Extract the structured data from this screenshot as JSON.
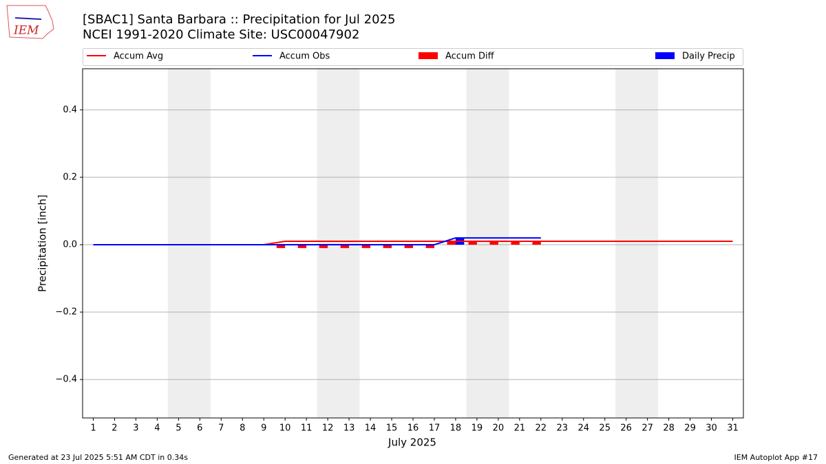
{
  "chart_data": {
    "type": "line",
    "title": "[SBAC1] Santa Barbara :: Precipitation for Jul 2025",
    "subtitle": "NCEI 1991-2020 Climate Site: USC00047902",
    "logo_text": "IEM",
    "xlabel": "July 2025",
    "ylabel": "Precipitation [inch]",
    "footer_left": "Generated at 23 Jul 2025 5:51 AM CDT in 0.34s",
    "footer_right": "IEM Autoplot App #17",
    "x": [
      1,
      2,
      3,
      4,
      5,
      6,
      7,
      8,
      9,
      10,
      11,
      12,
      13,
      14,
      15,
      16,
      17,
      18,
      19,
      20,
      21,
      22,
      23,
      24,
      25,
      26,
      27,
      28,
      29,
      30,
      31
    ],
    "series": [
      {
        "name": "Accum Avg",
        "type": "line",
        "color": "#ff0000",
        "values": [
          0,
          0,
          0,
          0,
          0,
          0,
          0,
          0,
          0,
          0.01,
          0.01,
          0.01,
          0.01,
          0.01,
          0.01,
          0.01,
          0.01,
          0.01,
          0.01,
          0.01,
          0.01,
          0.01,
          0.01,
          0.01,
          0.01,
          0.01,
          0.01,
          0.01,
          0.01,
          0.01,
          0.01
        ]
      },
      {
        "name": "Accum Obs",
        "type": "line",
        "color": "#0000ff",
        "values": [
          0,
          0,
          0,
          0,
          0,
          0,
          0,
          0,
          0,
          0,
          0,
          0,
          0,
          0,
          0,
          0,
          0,
          0.02,
          0.02,
          0.02,
          0.02,
          0.02,
          null,
          null,
          null,
          null,
          null,
          null,
          null,
          null,
          null
        ]
      },
      {
        "name": "Accum Diff",
        "type": "bar",
        "color": "#ff0000",
        "values": [
          0,
          0,
          0,
          0,
          0,
          0,
          0,
          0,
          0,
          -0.01,
          -0.01,
          -0.01,
          -0.01,
          -0.01,
          -0.01,
          -0.01,
          -0.01,
          0.01,
          0.01,
          0.01,
          0.01,
          0.01,
          null,
          null,
          null,
          null,
          null,
          null,
          null,
          null,
          null
        ]
      },
      {
        "name": "Daily Precip",
        "type": "bar",
        "color": "#0000ff",
        "values": [
          0,
          0,
          0,
          0,
          0,
          0,
          0,
          0,
          0,
          0,
          0,
          0,
          0,
          0,
          0,
          0,
          0,
          0.02,
          0,
          0,
          0,
          0,
          null,
          null,
          null,
          null,
          null,
          null,
          null,
          null,
          null
        ]
      }
    ],
    "shaded_ranges": [
      [
        4.5,
        6.5
      ],
      [
        11.5,
        13.5
      ],
      [
        18.5,
        20.5
      ],
      [
        25.5,
        27.5
      ]
    ],
    "shade_color": "#eeeeee",
    "xlim": [
      0.5,
      31.5
    ],
    "xticks": [
      1,
      2,
      3,
      4,
      5,
      6,
      7,
      8,
      9,
      10,
      11,
      12,
      13,
      14,
      15,
      16,
      17,
      18,
      19,
      20,
      21,
      22,
      23,
      24,
      25,
      26,
      27,
      28,
      29,
      30,
      31
    ],
    "ylim": [
      -0.514,
      0.522
    ],
    "yticks": [
      {
        "value": -0.4,
        "label": "−0.4"
      },
      {
        "value": -0.2,
        "label": "−0.2"
      },
      {
        "value": 0,
        "label": "0.0"
      },
      0.2,
      0.4
    ],
    "grid": true,
    "legend": "top"
  }
}
